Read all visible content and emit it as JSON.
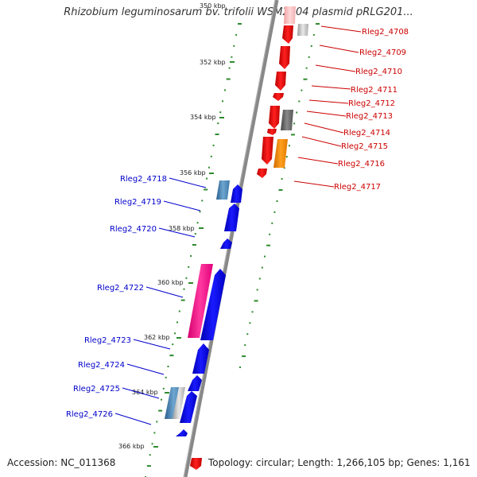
{
  "title": "Rhizobium leguminosarum bv. trifolii WSM2304 plasmid pRLG201...",
  "accession": "Accession: NC_011368",
  "topology": "Topology: circular; Length: 1,266,105 bp; Genes: 1,161",
  "colors": {
    "backbone": "#888888",
    "forward_gene": "#ff0000",
    "reverse_gene": "#0000ff",
    "forward_label": "#cc0000",
    "reverse_label": "#0000cc",
    "tick_green": "#2e8b2e"
  },
  "ticks": [
    "350 kbp",
    "352 kbp",
    "354 kbp",
    "356 kbp",
    "358 kbp",
    "360 kbp",
    "362 kbp",
    "364 kbp",
    "366 kbp"
  ],
  "forward_labels": [
    "Rleg2_4708",
    "Rleg2_4709",
    "Rleg2_4710",
    "Rleg2_4711",
    "Rleg2_4712",
    "Rleg2_4713",
    "Rleg2_4714",
    "Rleg2_4715",
    "Rleg2_4716",
    "Rleg2_4717"
  ],
  "reverse_labels": [
    "Rleg2_4718",
    "Rleg2_4719",
    "Rleg2_4720",
    "Rleg2_4722",
    "Rleg2_4723",
    "Rleg2_4724",
    "Rleg2_4725",
    "Rleg2_4726"
  ]
}
